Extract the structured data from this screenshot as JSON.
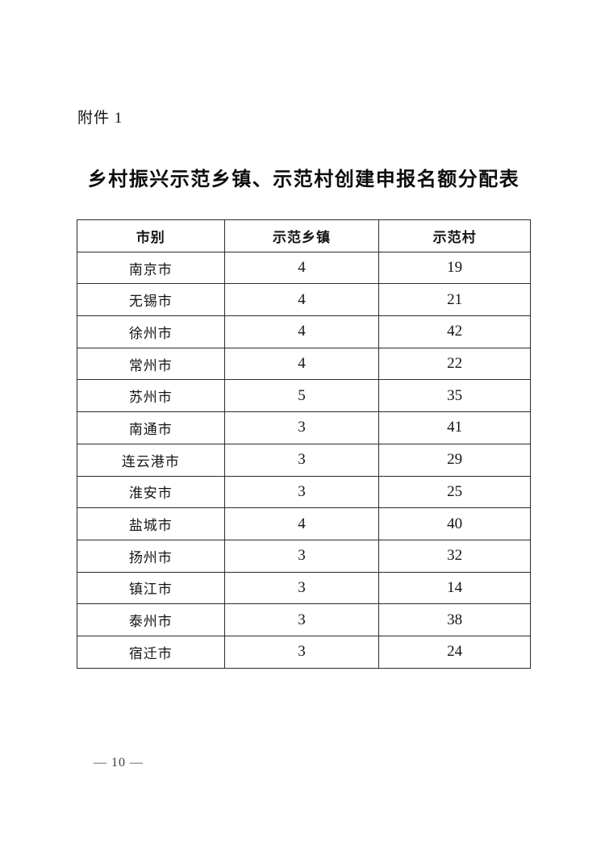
{
  "document": {
    "attachment_label": "附件 1",
    "title": "乡村振兴示范乡镇、示范村创建申报名额分配表",
    "footer_page_number": "— 10 —"
  },
  "table": {
    "headers": [
      "市别",
      "示范乡镇",
      "示范村"
    ],
    "rows": [
      [
        "南京市",
        "4",
        "19"
      ],
      [
        "无锡市",
        "4",
        "21"
      ],
      [
        "徐州市",
        "4",
        "42"
      ],
      [
        "常州市",
        "4",
        "22"
      ],
      [
        "苏州市",
        "5",
        "35"
      ],
      [
        "南通市",
        "3",
        "41"
      ],
      [
        "连云港市",
        "3",
        "29"
      ],
      [
        "淮安市",
        "3",
        "25"
      ],
      [
        "盐城市",
        "4",
        "40"
      ],
      [
        "扬州市",
        "3",
        "32"
      ],
      [
        "镇江市",
        "3",
        "14"
      ],
      [
        "泰州市",
        "3",
        "38"
      ],
      [
        "宿迁市",
        "3",
        "24"
      ]
    ]
  },
  "colors": {
    "page_background": "#ffffff",
    "text": "#151515",
    "table_border": "#2b2b2b"
  }
}
